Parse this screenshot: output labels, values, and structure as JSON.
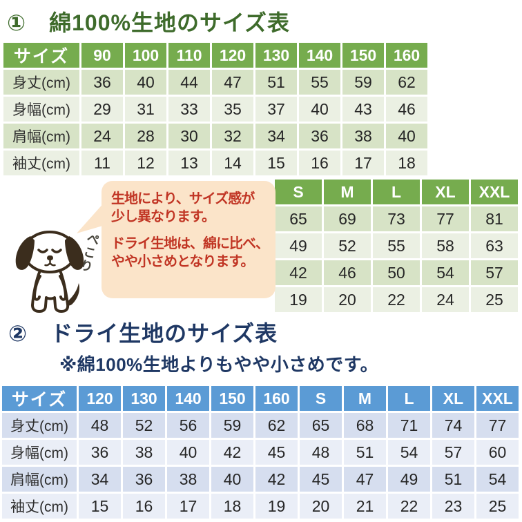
{
  "colors": {
    "title1_green": "#3E6B2B",
    "header_green": "#76AC4E",
    "green_row_a": "#D7E3C6",
    "green_row_b": "#EBF0E3",
    "header_blue": "#5B9BD5",
    "blue_row_a": "#D6DEEF",
    "blue_row_b": "#EAEEF7",
    "navy": "#1F3864",
    "callout_bg": "#FBE4C9",
    "callout_red": "#C13524",
    "cell_text": "#262626",
    "dog_brown": "#3B2D1D"
  },
  "section_cotton": {
    "title": "①　綿100%生地のサイズ表",
    "kids_table": {
      "header": [
        "サイズ",
        "90",
        "100",
        "110",
        "120",
        "130",
        "140",
        "150",
        "160"
      ],
      "rows": [
        {
          "label": "身丈(cm)",
          "values": [
            "36",
            "40",
            "44",
            "47",
            "51",
            "55",
            "59",
            "62"
          ]
        },
        {
          "label": "身幅(cm)",
          "values": [
            "29",
            "31",
            "33",
            "35",
            "37",
            "40",
            "43",
            "46"
          ]
        },
        {
          "label": "肩幅(cm)",
          "values": [
            "24",
            "28",
            "30",
            "32",
            "34",
            "36",
            "38",
            "40"
          ]
        },
        {
          "label": "袖丈(cm)",
          "values": [
            "11",
            "12",
            "13",
            "14",
            "15",
            "16",
            "17",
            "18"
          ]
        }
      ]
    },
    "adult_table": {
      "header": [
        "S",
        "M",
        "L",
        "XL",
        "XXL"
      ],
      "rows": [
        {
          "values": [
            "65",
            "69",
            "73",
            "77",
            "81"
          ]
        },
        {
          "values": [
            "49",
            "52",
            "55",
            "58",
            "63"
          ]
        },
        {
          "values": [
            "42",
            "46",
            "50",
            "54",
            "57"
          ]
        },
        {
          "values": [
            "19",
            "20",
            "22",
            "24",
            "25"
          ]
        }
      ]
    }
  },
  "callout": {
    "line1": "生地により、サイズ感が",
    "line2": "少し異なります。",
    "line3": "ドライ生地は、綿に比べ、",
    "line4": "やや小さめとなります。",
    "bow_label": "ぺこり"
  },
  "section_dry": {
    "title": "②　ドライ生地のサイズ表",
    "note": "※綿100%生地よりもやや小さめです。",
    "table": {
      "header": [
        "サイズ",
        "120",
        "130",
        "140",
        "150",
        "160",
        "S",
        "M",
        "L",
        "XL",
        "XXL"
      ],
      "rows": [
        {
          "label": "身丈(cm)",
          "values": [
            "48",
            "52",
            "56",
            "59",
            "62",
            "65",
            "68",
            "71",
            "74",
            "77"
          ]
        },
        {
          "label": "身幅(cm)",
          "values": [
            "36",
            "38",
            "40",
            "42",
            "45",
            "48",
            "51",
            "54",
            "57",
            "60"
          ]
        },
        {
          "label": "肩幅(cm)",
          "values": [
            "34",
            "36",
            "38",
            "40",
            "42",
            "45",
            "47",
            "49",
            "51",
            "54"
          ]
        },
        {
          "label": "袖丈(cm)",
          "values": [
            "15",
            "16",
            "17",
            "18",
            "19",
            "20",
            "21",
            "22",
            "23",
            "25"
          ]
        }
      ]
    }
  }
}
